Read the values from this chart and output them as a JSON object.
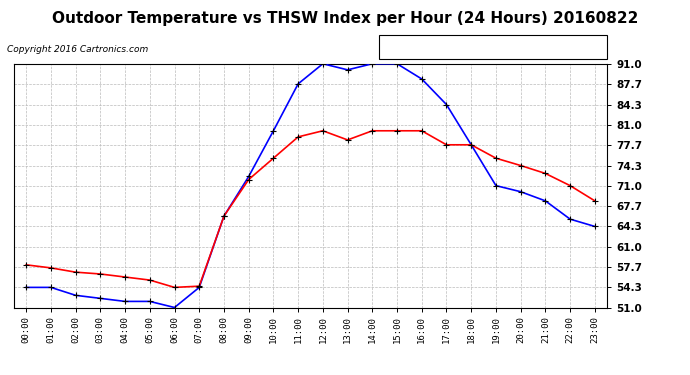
{
  "title": "Outdoor Temperature vs THSW Index per Hour (24 Hours) 20160822",
  "copyright": "Copyright 2016 Cartronics.com",
  "hours": [
    "00:00",
    "01:00",
    "02:00",
    "03:00",
    "04:00",
    "05:00",
    "06:00",
    "07:00",
    "08:00",
    "09:00",
    "10:00",
    "11:00",
    "12:00",
    "13:00",
    "14:00",
    "15:00",
    "16:00",
    "17:00",
    "18:00",
    "19:00",
    "20:00",
    "21:00",
    "22:00",
    "23:00"
  ],
  "thsw": [
    54.3,
    54.3,
    53.0,
    52.5,
    52.0,
    52.0,
    51.0,
    54.3,
    66.0,
    72.5,
    80.0,
    87.7,
    91.0,
    90.0,
    91.0,
    91.0,
    88.5,
    84.3,
    77.7,
    71.0,
    70.0,
    68.5,
    65.5,
    64.3
  ],
  "temperature": [
    58.0,
    57.5,
    56.8,
    56.5,
    56.0,
    55.5,
    54.3,
    54.5,
    66.0,
    72.0,
    75.5,
    79.0,
    80.0,
    78.5,
    80.0,
    80.0,
    80.0,
    77.7,
    77.7,
    75.5,
    74.3,
    73.0,
    71.0,
    68.5
  ],
  "ylim_min": 51.0,
  "ylim_max": 91.0,
  "yticks": [
    51.0,
    54.3,
    57.7,
    61.0,
    64.3,
    67.7,
    71.0,
    74.3,
    77.7,
    81.0,
    84.3,
    87.7,
    91.0
  ],
  "thsw_color": "#0000ff",
  "temp_color": "#ff0000",
  "background_color": "#ffffff",
  "grid_color": "#bbbbbb",
  "title_fontsize": 11,
  "legend_thsw_bg": "#0000ff",
  "legend_temp_bg": "#ff0000"
}
